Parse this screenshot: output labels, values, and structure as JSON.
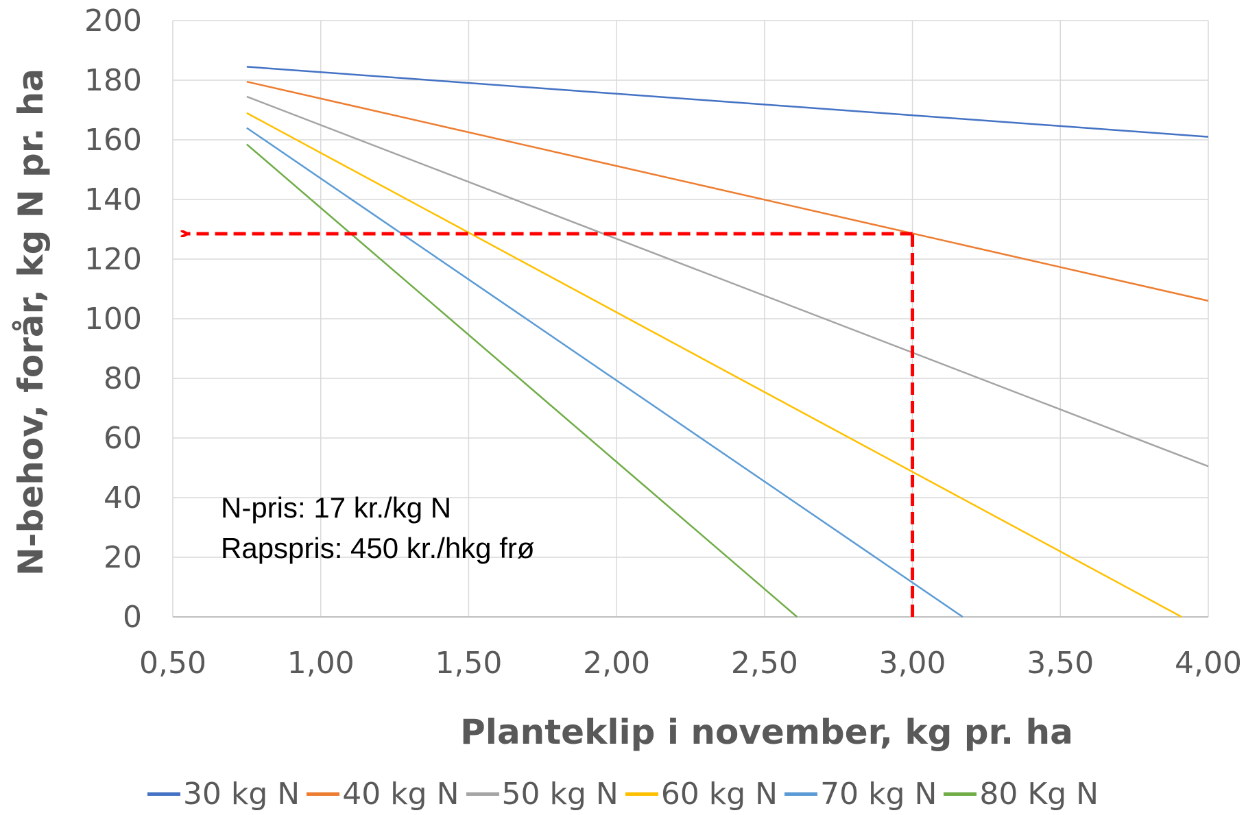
{
  "chart_data": {
    "type": "line",
    "xlabel": "Planteklip i november, kg pr. ha",
    "ylabel": "N-behov, forår, kg N pr. ha",
    "xlim": [
      0.5,
      4.0
    ],
    "ylim": [
      0,
      200
    ],
    "x_ticks": [
      "0,50",
      "1,00",
      "1,50",
      "2,00",
      "2,50",
      "3,00",
      "3,50",
      "4,00"
    ],
    "y_ticks": [
      "0",
      "20",
      "40",
      "60",
      "80",
      "100",
      "120",
      "140",
      "160",
      "180",
      "200"
    ],
    "grid": true,
    "legend_position": "bottom",
    "series": [
      {
        "name": "30 kg N",
        "color": "#4472C4",
        "points": [
          [
            0.75,
            184.5
          ],
          [
            4.0,
            161.0
          ]
        ]
      },
      {
        "name": "40 kg N",
        "color": "#ED7D31",
        "points": [
          [
            0.75,
            179.5
          ],
          [
            4.0,
            106.0
          ]
        ]
      },
      {
        "name": "50 kg N",
        "color": "#A5A5A5",
        "points": [
          [
            0.75,
            174.5
          ],
          [
            4.0,
            50.5
          ]
        ]
      },
      {
        "name": "60 kg N",
        "color": "#FFC000",
        "points": [
          [
            0.75,
            169.0
          ],
          [
            3.91,
            0
          ]
        ]
      },
      {
        "name": "70 kg N",
        "color": "#5B9BD5",
        "points": [
          [
            0.75,
            164.0
          ],
          [
            3.17,
            0
          ]
        ]
      },
      {
        "name": "80 Kg N",
        "color": "#70AD47",
        "points": [
          [
            0.75,
            158.5
          ],
          [
            2.61,
            0
          ]
        ]
      }
    ],
    "annotations": [
      "N-pris: 17 kr./kg N",
      "Rapspris: 450 kr./hkg frø"
    ],
    "reading_guide": {
      "color": "#FF0000",
      "x": 3.0,
      "y": 128.5,
      "x_end": 0.52
    }
  }
}
